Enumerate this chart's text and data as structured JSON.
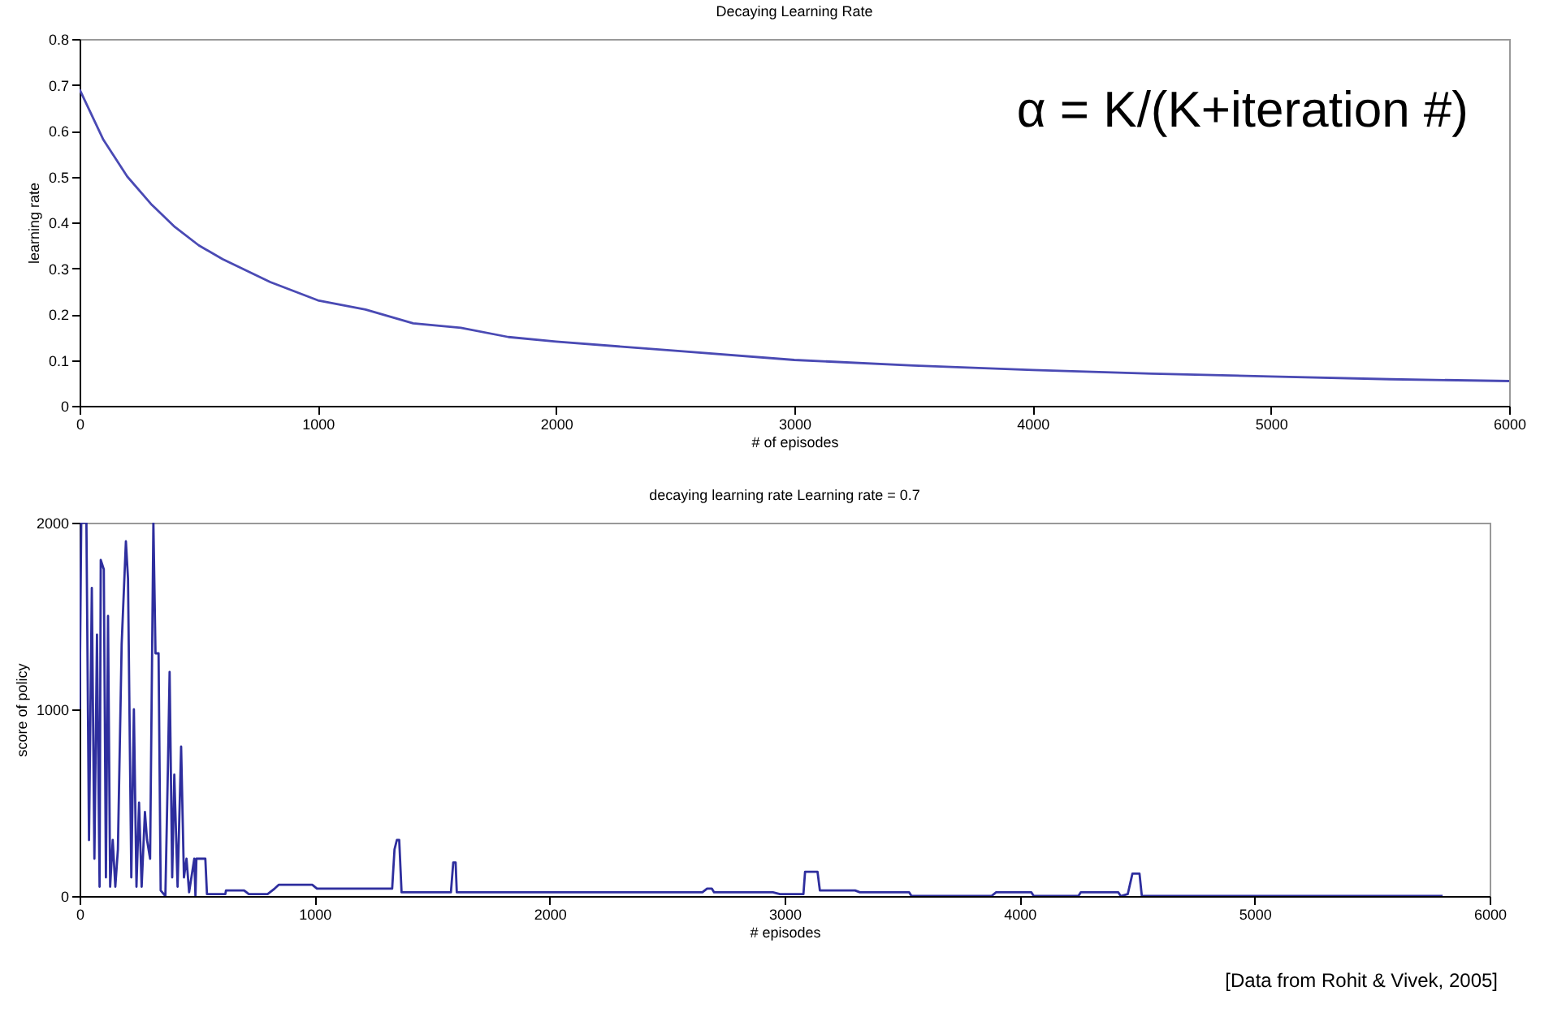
{
  "chart_data": [
    {
      "type": "line",
      "title": "Decaying Learning Rate",
      "xlabel": "# of episodes",
      "ylabel": "learning rate",
      "annotations": [
        "α = K/(K+iteration #)"
      ],
      "xlim": [
        0,
        6000
      ],
      "xticks": [
        0,
        1000,
        2000,
        3000,
        4000,
        5000,
        6000
      ],
      "ylim": [
        0,
        0.8
      ],
      "yticks": [
        0,
        0.1,
        0.2,
        0.3,
        0.4,
        0.5,
        0.6,
        0.7,
        0.8
      ],
      "grid": false,
      "marker": "none",
      "line_style": "solid",
      "series": [
        {
          "color": "#4a4ab4",
          "x": [
            0,
            100,
            200,
            300,
            400,
            500,
            600,
            800,
            1000,
            1200,
            1400,
            1600,
            1800,
            2000,
            2500,
            3000,
            3500,
            4000,
            4500,
            5000,
            5500,
            6000
          ],
          "values": [
            0.69,
            0.58,
            0.5,
            0.44,
            0.39,
            0.35,
            0.32,
            0.27,
            0.23,
            0.21,
            0.18,
            0.17,
            0.15,
            0.14,
            0.12,
            0.1,
            0.088,
            0.078,
            0.07,
            0.064,
            0.058,
            0.054
          ]
        }
      ]
    },
    {
      "type": "line",
      "title": "decaying learning rate Learning rate = 0.7",
      "xlabel": "# episodes",
      "ylabel": "score of policy",
      "annotations": [
        "[Data from Rohit & Vivek, 2005]"
      ],
      "xlim": [
        0,
        6000
      ],
      "xticks": [
        0,
        1000,
        2000,
        3000,
        4000,
        5000,
        6000
      ],
      "ylim": [
        0,
        2000
      ],
      "yticks": [
        0,
        1000,
        2000
      ],
      "grid": false,
      "marker": "none",
      "line_style": "solid",
      "series": [
        {
          "color": "#2e2e9e",
          "x": [
            0,
            7,
            29,
            40,
            52,
            63,
            74,
            85,
            90,
            103,
            112,
            121,
            130,
            141,
            152,
            163,
            179,
            197,
            206,
            220,
            231,
            242,
            253,
            264,
            278,
            287,
            300,
            314,
            323,
            336,
            345,
            365,
            376,
            383,
            394,
            403,
            417,
            432,
            444,
            455,
            466,
            488,
            493,
            497,
            535,
            542,
            620,
            623,
            700,
            720,
            800,
            830,
            847,
            990,
            1010,
            1330,
            1340,
            1350,
            1360,
            1370,
            1580,
            1590,
            1600,
            1605,
            2650,
            2670,
            2690,
            2700,
            2950,
            2980,
            3080,
            3087,
            3140,
            3150,
            3300,
            3320,
            3530,
            3540,
            3880,
            3900,
            4050,
            4060,
            4250,
            4260,
            4420,
            4430,
            4460,
            4480,
            4510,
            4520,
            5800
          ],
          "values": [
            1000,
            2000,
            2000,
            300,
            1650,
            200,
            1400,
            50,
            1800,
            1750,
            100,
            1500,
            50,
            300,
            50,
            250,
            1350,
            1900,
            1700,
            100,
            1000,
            50,
            500,
            50,
            450,
            300,
            200,
            2000,
            1300,
            1300,
            30,
            0,
            700,
            1200,
            100,
            650,
            50,
            800,
            100,
            200,
            20,
            200,
            0,
            200,
            200,
            10,
            10,
            30,
            30,
            10,
            10,
            40,
            60,
            60,
            40,
            40,
            250,
            300,
            300,
            20,
            20,
            180,
            180,
            20,
            20,
            40,
            40,
            20,
            20,
            10,
            10,
            130,
            130,
            30,
            30,
            20,
            20,
            0,
            0,
            20,
            20,
            0,
            0,
            20,
            20,
            0,
            10,
            120,
            120,
            0,
            0
          ]
        }
      ]
    }
  ]
}
